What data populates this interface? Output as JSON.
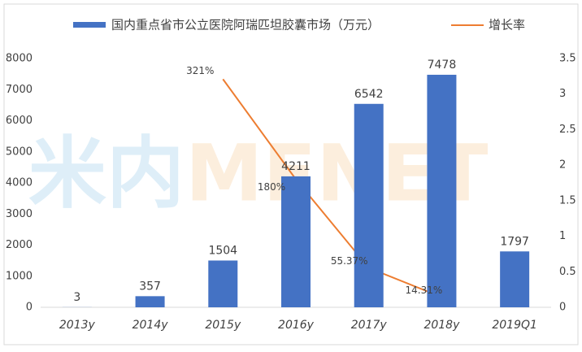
{
  "chart_data": {
    "type": "bar_line",
    "watermark": {
      "cn": "米内",
      "en": "MENET"
    },
    "categories": [
      "2013y",
      "2014y",
      "2015y",
      "2016y",
      "2017y",
      "2018y",
      "2019Q1"
    ],
    "series": [
      {
        "name": "国内重点省市公立医院阿瑞匹坦胶囊市场（万元）",
        "type": "bar",
        "color": "#4472c4",
        "values": [
          3,
          357,
          1504,
          4211,
          6542,
          7478,
          1797
        ]
      },
      {
        "name": "增长率",
        "type": "line",
        "axis": "y2",
        "color": "#ed7d31",
        "values": [
          null,
          null,
          3.21,
          1.8,
          0.5537,
          0.1431,
          null
        ],
        "value_labels": [
          null,
          null,
          "321%",
          "180%",
          "55.37%",
          "14.31%",
          null
        ]
      }
    ],
    "ylim": [
      0,
      8000
    ],
    "yticks": [
      0,
      1000,
      2000,
      3000,
      4000,
      5000,
      6000,
      7000,
      8000
    ],
    "y2lim": [
      0,
      3.5
    ],
    "y2ticks": [
      0,
      0.5,
      1,
      1.5,
      2,
      2.5,
      3,
      3.5
    ],
    "legend": "top"
  }
}
